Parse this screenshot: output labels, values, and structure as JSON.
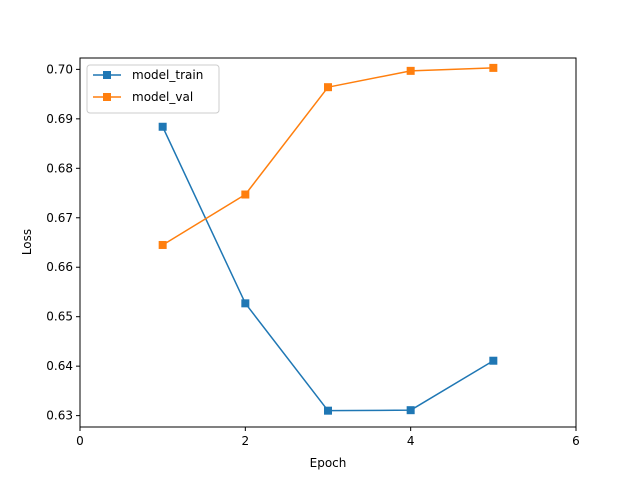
{
  "chart_data": {
    "type": "line",
    "title": "",
    "xlabel": "Epoch",
    "ylabel": "Loss",
    "xlim": [
      0,
      6
    ],
    "ylim": [
      0.6277,
      0.7023
    ],
    "xticks": [
      0,
      2,
      4,
      6
    ],
    "yticks": [
      0.63,
      0.64,
      0.65,
      0.66,
      0.67,
      0.68,
      0.69,
      0.7
    ],
    "ytick_labels": [
      "0.63",
      "0.64",
      "0.65",
      "0.66",
      "0.67",
      "0.68",
      "0.69",
      "0.70"
    ],
    "grid": false,
    "legend": "upper-left",
    "series": [
      {
        "name": "model_train",
        "color": "#1f77b4",
        "marker": "square",
        "x": [
          1,
          2,
          3,
          4,
          5
        ],
        "y": [
          0.6884,
          0.6527,
          0.631,
          0.6311,
          0.6411
        ]
      },
      {
        "name": "model_val",
        "color": "#ff7f0e",
        "marker": "square",
        "x": [
          1,
          2,
          3,
          4,
          5
        ],
        "y": [
          0.6645,
          0.6747,
          0.6964,
          0.6997,
          0.7003
        ]
      }
    ]
  }
}
